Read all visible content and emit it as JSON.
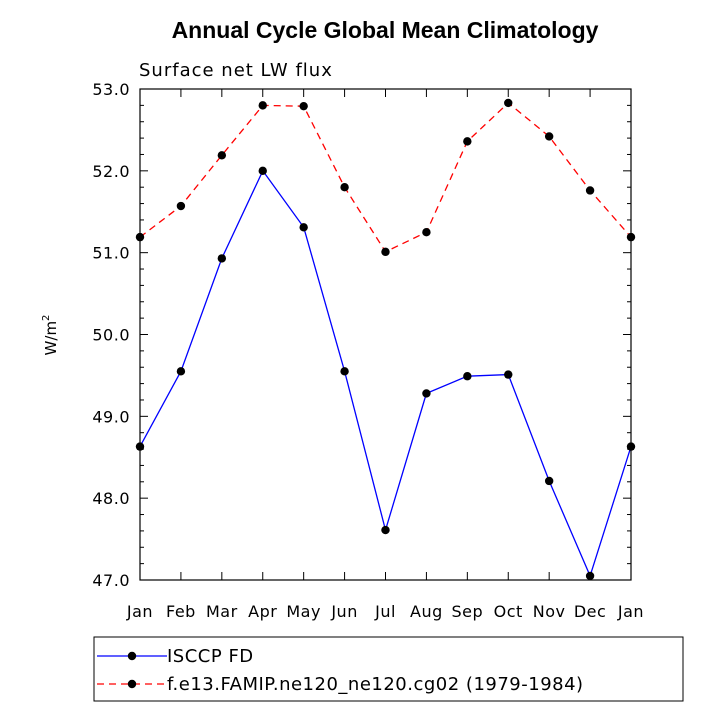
{
  "chart_data": {
    "type": "line",
    "title": "Annual Cycle Global Mean Climatology",
    "subtitle": "Surface net LW flux",
    "ylabel": "W/m",
    "ylabel_sup": "2",
    "xlabel": "",
    "categories": [
      "Jan",
      "Feb",
      "Mar",
      "Apr",
      "May",
      "Jun",
      "Jul",
      "Aug",
      "Sep",
      "Oct",
      "Nov",
      "Dec",
      "Jan"
    ],
    "ylim": [
      47.0,
      53.0
    ],
    "yticks": [
      "47.0",
      "48.0",
      "49.0",
      "50.0",
      "51.0",
      "52.0",
      "53.0"
    ],
    "series": [
      {
        "name": "ISCCP FD",
        "color": "#0000ff",
        "dash": "solid",
        "values": [
          48.63,
          49.55,
          50.93,
          52.0,
          51.31,
          49.55,
          47.61,
          49.28,
          49.49,
          49.51,
          48.21,
          47.05,
          48.63
        ]
      },
      {
        "name": "f.e13.FAMIP.ne120_ne120.cg02 (1979-1984)",
        "color": "#ff0000",
        "dash": "dashed",
        "values": [
          51.19,
          51.57,
          52.19,
          52.8,
          52.79,
          51.8,
          51.01,
          51.25,
          52.36,
          52.83,
          52.42,
          51.76,
          51.19
        ]
      }
    ],
    "legend_position": "bottom-left"
  }
}
